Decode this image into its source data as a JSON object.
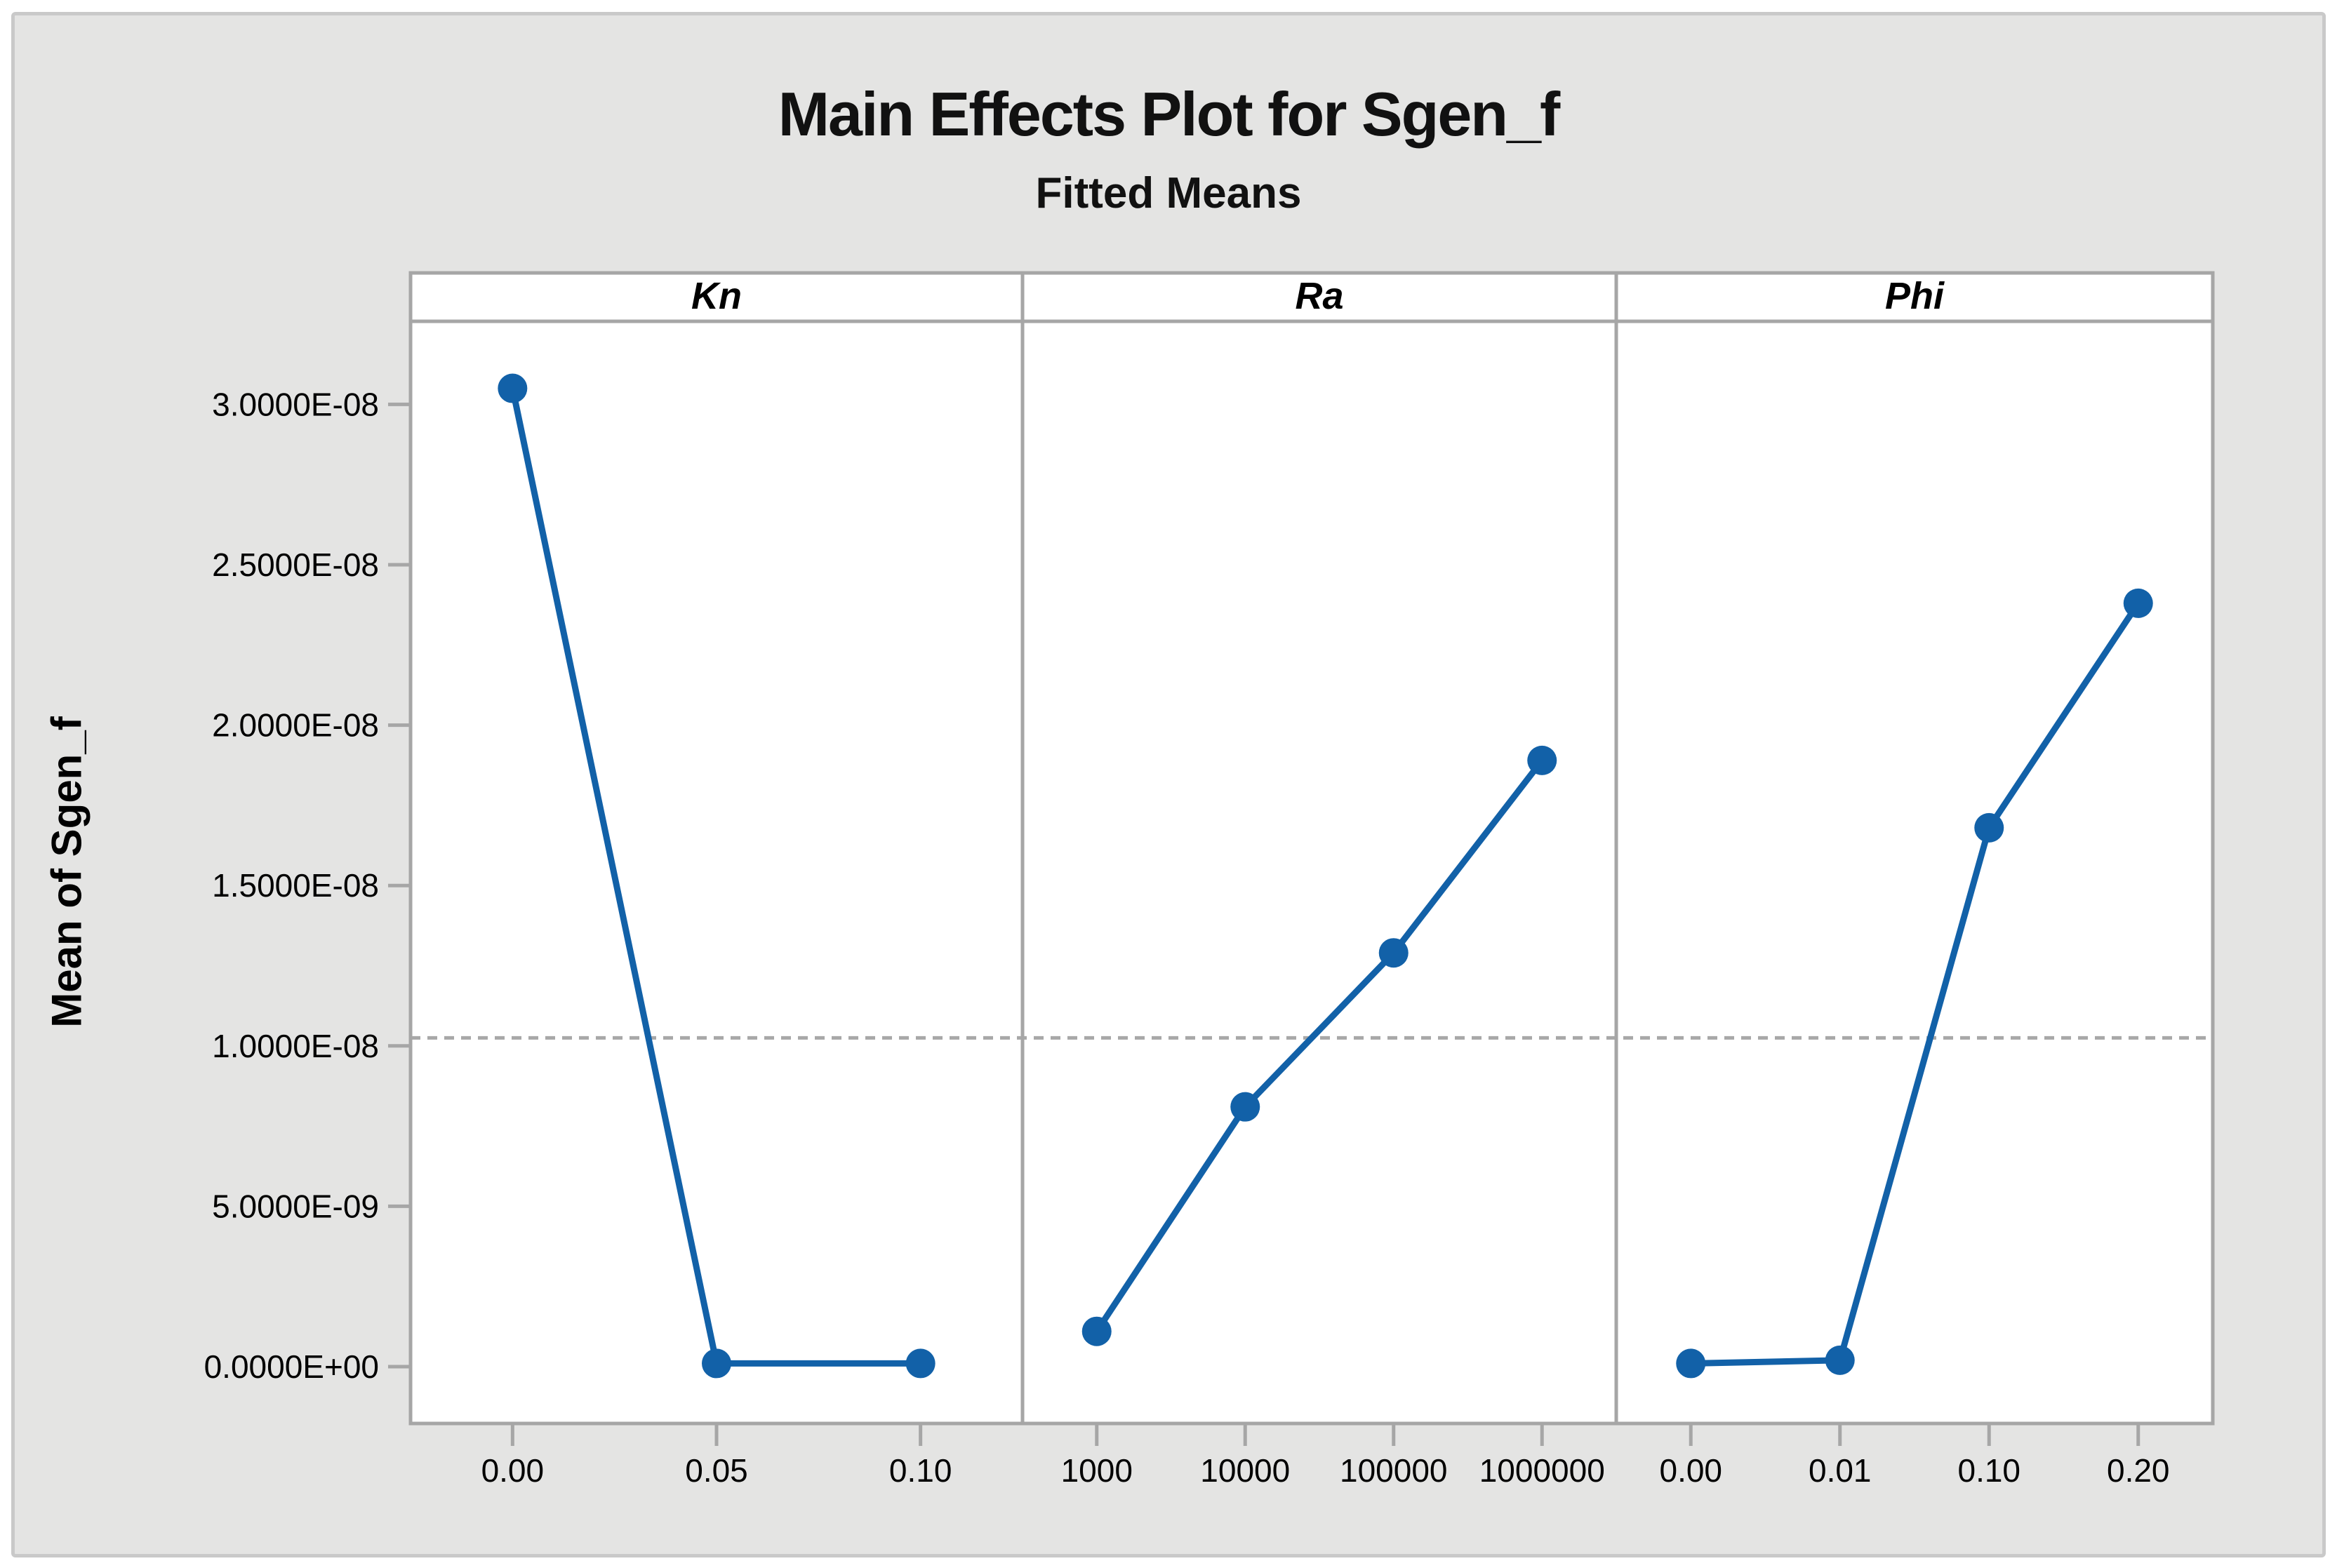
{
  "title": "Main Effects Plot for Sgen_f",
  "subtitle": "Fitted Means",
  "y_axis_label": "Mean of Sgen_f",
  "colors": {
    "series": "#1261a8",
    "panel_background": "#ffffff",
    "panel_border": "#a6a6a6",
    "tick": "#a6a6a6",
    "reference_line": "#a8a8a8",
    "canvas_background": "#e4e4e3",
    "canvas_border": "#c9c9c9",
    "text": "#000000"
  },
  "chart_data": {
    "type": "line",
    "title": "Main Effects Plot for Sgen_f",
    "subtitle": "Fitted Means",
    "ylabel": "Mean of Sgen_f",
    "xlabel": "",
    "ylim": [
      0,
      3.26e-08
    ],
    "grid": false,
    "reference_line_value": 1.025e-08,
    "marker": "circle",
    "y_ticks": [
      {
        "v": 0,
        "label": "0.0000E+00"
      },
      {
        "v": 5e-09,
        "label": "5.0000E-09"
      },
      {
        "v": 1e-08,
        "label": "1.0000E-08"
      },
      {
        "v": 1.5e-08,
        "label": "1.5000E-08"
      },
      {
        "v": 2e-08,
        "label": "2.0000E-08"
      },
      {
        "v": 2.5e-08,
        "label": "2.5000E-08"
      },
      {
        "v": 3e-08,
        "label": "3.0000E-08"
      }
    ],
    "panels": [
      {
        "name": "Kn",
        "categories": [
          "0.00",
          "0.05",
          "0.10"
        ],
        "values": [
          3.05e-08,
          1e-10,
          1e-10
        ]
      },
      {
        "name": "Ra",
        "categories": [
          "1000",
          "10000",
          "100000",
          "1000000"
        ],
        "values": [
          1.1e-09,
          8.1e-09,
          1.29e-08,
          1.89e-08
        ]
      },
      {
        "name": "Phi",
        "categories": [
          "0.00",
          "0.01",
          "0.10",
          "0.20"
        ],
        "values": [
          1e-10,
          2e-10,
          1.68e-08,
          2.38e-08
        ]
      }
    ]
  }
}
